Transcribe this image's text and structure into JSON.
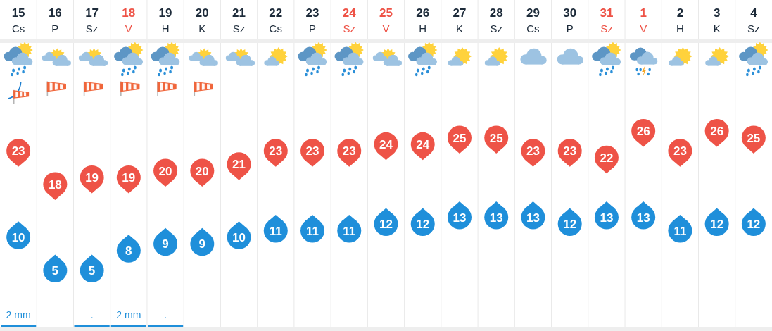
{
  "chart_data": {
    "type": "scatter",
    "categories": [
      "15\nCs",
      "16\nP",
      "17\nSz",
      "18\nV",
      "19\nH",
      "20\nK",
      "21\nSz",
      "22\nCs",
      "23\nP",
      "24\nSz",
      "25\nV",
      "26\nH",
      "27\nK",
      "28\nSz",
      "29\nCs",
      "30\nP",
      "31\nSz",
      "1\nV",
      "2\nH",
      "3\nK",
      "4\nSz"
    ],
    "series": [
      {
        "color": "#ee5347",
        "values": [
          23,
          18,
          19,
          19,
          20,
          20,
          21,
          23,
          23,
          23,
          24,
          24,
          25,
          25,
          23,
          23,
          22,
          26,
          23,
          26,
          25
        ]
      },
      {
        "color": "#1f8fda",
        "values": [
          10,
          5,
          5,
          8,
          9,
          9,
          10,
          11,
          11,
          11,
          12,
          12,
          13,
          13,
          13,
          12,
          13,
          13,
          11,
          12,
          12
        ]
      }
    ],
    "marker": "circle",
    "data_labels": true,
    "tick_labels": "x",
    "grid": "x",
    "annotations": [
      "2 mm",
      ".",
      "2 mm",
      "."
    ]
  }
}
